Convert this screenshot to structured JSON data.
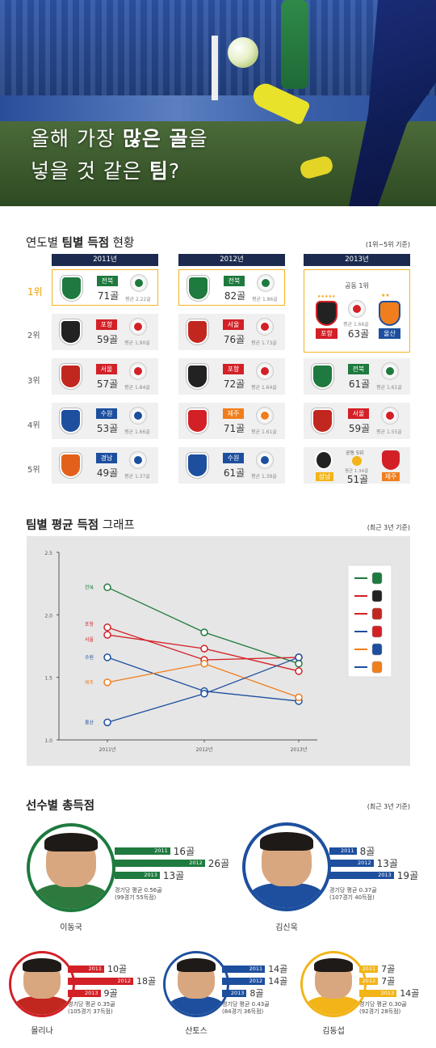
{
  "hero": {
    "line1_pre": "올해 가장 ",
    "line1_bold": "많은 골",
    "line1_post": "을",
    "line2_pre": "넣을 것 같은 ",
    "line2_bold": "팀",
    "line2_post": "?"
  },
  "section1": {
    "title_pre": "연도별 ",
    "title_bold": "팀별 득점",
    "title_post": " 현황",
    "note": "(1위~5위 기준)"
  },
  "years": [
    "2011년",
    "2012년",
    "2013년"
  ],
  "ranks": [
    "1위",
    "2위",
    "3위",
    "4위",
    "5위"
  ],
  "colors": {
    "jeonbuk": "#1e7a3e",
    "pohang": "#d32027",
    "seoul": "#d32027",
    "suwon": "#1d4f9e",
    "gyeongnam": "#1d4f9e",
    "jeju": "#f07e1c",
    "ulsan": "#1d4f9e",
    "seongnam": "#f2b418",
    "navy": "#1b2a4e",
    "gold": "#f4b323"
  },
  "table": {
    "2011": [
      {
        "team": "전북",
        "goals": "71골",
        "avg": "평균 2.22골",
        "color": "#1e7a3e",
        "emb": "#1e7a3e"
      },
      {
        "team": "포항",
        "goals": "59골",
        "avg": "평균 1.90골",
        "color": "#d32027",
        "emb": "#222"
      },
      {
        "team": "서울",
        "goals": "57골",
        "avg": "평균 1.84골",
        "color": "#d32027",
        "emb": "#c2271f"
      },
      {
        "team": "수원",
        "goals": "53골",
        "avg": "평균 1.66골",
        "color": "#1d4f9e",
        "emb": "#1d4f9e"
      },
      {
        "team": "경남",
        "goals": "49골",
        "avg": "평균 1.37골",
        "color": "#1d4f9e",
        "emb": "#e3601a"
      }
    ],
    "2012": [
      {
        "team": "전북",
        "goals": "82골",
        "avg": "평균 1.86골",
        "color": "#1e7a3e",
        "emb": "#1e7a3e"
      },
      {
        "team": "서울",
        "goals": "76골",
        "avg": "평균 1.73골",
        "color": "#d32027",
        "emb": "#c2271f"
      },
      {
        "team": "포항",
        "goals": "72골",
        "avg": "평균 1.64골",
        "color": "#d32027",
        "emb": "#222"
      },
      {
        "team": "제주",
        "goals": "71골",
        "avg": "평균 1.61골",
        "color": "#f07e1c",
        "emb": "#d32027"
      },
      {
        "team": "수원",
        "goals": "61골",
        "avg": "평균 1.39골",
        "color": "#1d4f9e",
        "emb": "#1d4f9e"
      }
    ],
    "2013_first": {
      "label": "공동 1위",
      "team_a": "포항",
      "team_b": "울산",
      "goals": "63골",
      "avg": "평균 1.66골"
    },
    "2013": [
      {
        "team": "전북",
        "goals": "61골",
        "avg": "평균 1.61골",
        "color": "#1e7a3e",
        "emb": "#1e7a3e"
      },
      {
        "team": "서울",
        "goals": "59골",
        "avg": "평균 1.55골",
        "color": "#d32027",
        "emb": "#c2271f"
      }
    ],
    "2013_fifth": {
      "label": "공동 5위",
      "team_a": "성남",
      "team_b": "제주",
      "goals": "51골",
      "avg": "평균 1.34골"
    }
  },
  "section2": {
    "title_pre": "팀별 평균 득점",
    "title_post": " 그래프",
    "note": "(최근 3년 기준)"
  },
  "chart_data": {
    "type": "line",
    "x": [
      "2011년",
      "2012년",
      "2013년"
    ],
    "ylim": [
      1.0,
      2.5
    ],
    "yticks": [
      "1.0",
      "1.5",
      "2.0",
      "2.5"
    ],
    "series": [
      {
        "name": "전북",
        "color": "#1e7a3e",
        "values": [
          2.22,
          1.86,
          1.61
        ]
      },
      {
        "name": "포항",
        "color": "#d32027",
        "values": [
          1.9,
          1.64,
          1.66
        ]
      },
      {
        "name": "서울",
        "color": "#d32027",
        "values": [
          1.84,
          1.73,
          1.55
        ]
      },
      {
        "name": "수원",
        "color": "#1d4f9e",
        "values": [
          1.66,
          1.39,
          1.31
        ]
      },
      {
        "name": "제주",
        "color": "#f07e1c",
        "values": [
          1.46,
          1.61,
          1.34
        ]
      },
      {
        "name": "울산",
        "color": "#1d4f9e",
        "values": [
          1.14,
          1.37,
          1.66
        ]
      }
    ],
    "legend": "right"
  },
  "section3": {
    "title": "선수별 총득점",
    "note": "(최근 3년 기준)"
  },
  "players": [
    {
      "name": "이동국",
      "ring": "#1e7a3e",
      "bars": [
        {
          "year": "2011",
          "goals": "16골",
          "value": 16
        },
        {
          "year": "2012",
          "goals": "26골",
          "value": 26
        },
        {
          "year": "2013",
          "goals": "13골",
          "value": 13
        }
      ],
      "stat1": "경기당 평균 0.56골",
      "stat2": "(99경기 55득점)"
    },
    {
      "name": "김신욱",
      "ring": "#1d4f9e",
      "bars": [
        {
          "year": "2011",
          "goals": "8골",
          "value": 8
        },
        {
          "year": "2012",
          "goals": "13골",
          "value": 13
        },
        {
          "year": "2013",
          "goals": "19골",
          "value": 19
        }
      ],
      "stat1": "경기당 평균 0.37골",
      "stat2": "(107경기 40득점)"
    },
    {
      "name": "몰리나",
      "ring": "#d32027",
      "bars": [
        {
          "year": "2011",
          "goals": "10골",
          "value": 10
        },
        {
          "year": "2012",
          "goals": "18골",
          "value": 18
        },
        {
          "year": "2013",
          "goals": "9골",
          "value": 9
        }
      ],
      "stat1": "경기당 평균 0.35골",
      "stat2": "(105경기 37득점)"
    },
    {
      "name": "산토스",
      "ring": "#1d4f9e",
      "bars": [
        {
          "year": "2011",
          "goals": "14골",
          "value": 14
        },
        {
          "year": "2012",
          "goals": "14골",
          "value": 14
        },
        {
          "year": "2013",
          "goals": "8골",
          "value": 8
        }
      ],
      "stat1": "경기당 평균 0.43골",
      "stat2": "(84경기 36득점)"
    },
    {
      "name": "김동섭",
      "ring": "#f2b418",
      "bars": [
        {
          "year": "2011",
          "goals": "7골",
          "value": 7
        },
        {
          "year": "2012",
          "goals": "7골",
          "value": 7
        },
        {
          "year": "2013",
          "goals": "14골",
          "value": 14
        }
      ],
      "stat1": "경기당 평균 0.30골",
      "stat2": "(92경기 28득점)"
    }
  ]
}
